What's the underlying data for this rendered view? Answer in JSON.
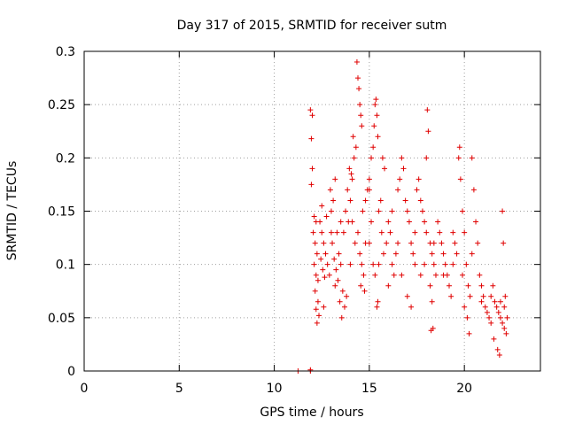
{
  "chart_data": {
    "type": "scatter",
    "title": "Day 317 of 2015, SRMTID for receiver sutm",
    "xlabel": "GPS time / hours",
    "ylabel": "SRMTID / TECUs",
    "xlim": [
      0,
      24
    ],
    "ylim": [
      0,
      0.3
    ],
    "xticks": [
      0,
      5,
      10,
      15,
      20
    ],
    "yticks": [
      0,
      0.05,
      0.1,
      0.15,
      0.2,
      0.25,
      0.3
    ],
    "xtick_labels": [
      "0",
      "5",
      "10",
      "15",
      "20"
    ],
    "ytick_labels": [
      "0",
      "0.05",
      "0.1",
      "0.15",
      "0.2",
      "0.25",
      "0.3"
    ],
    "grid": true,
    "marker": "+",
    "color": "#e00000",
    "series": [
      {
        "name": "SRMTID",
        "points": [
          [
            11.25,
            0.0
          ],
          [
            11.9,
            0.0
          ],
          [
            11.9,
            0.001
          ],
          [
            11.9,
            0.245
          ],
          [
            12.0,
            0.24
          ],
          [
            11.95,
            0.218
          ],
          [
            12.0,
            0.19
          ],
          [
            11.95,
            0.175
          ],
          [
            12.1,
            0.145
          ],
          [
            12.2,
            0.14
          ],
          [
            12.05,
            0.13
          ],
          [
            12.15,
            0.12
          ],
          [
            12.25,
            0.11
          ],
          [
            12.1,
            0.1
          ],
          [
            12.2,
            0.09
          ],
          [
            12.3,
            0.085
          ],
          [
            12.15,
            0.075
          ],
          [
            12.3,
            0.065
          ],
          [
            12.2,
            0.058
          ],
          [
            12.35,
            0.052
          ],
          [
            12.25,
            0.045
          ],
          [
            12.4,
            0.14
          ],
          [
            12.5,
            0.13
          ],
          [
            12.6,
            0.12
          ],
          [
            12.45,
            0.105
          ],
          [
            12.7,
            0.11
          ],
          [
            12.55,
            0.095
          ],
          [
            12.8,
            0.1
          ],
          [
            12.65,
            0.088
          ],
          [
            12.9,
            0.09
          ],
          [
            12.75,
            0.145
          ],
          [
            13.0,
            0.15
          ],
          [
            13.1,
            0.16
          ],
          [
            12.95,
            0.17
          ],
          [
            13.2,
            0.18
          ],
          [
            13.05,
            0.12
          ],
          [
            13.3,
            0.13
          ],
          [
            13.15,
            0.105
          ],
          [
            13.4,
            0.11
          ],
          [
            13.25,
            0.095
          ],
          [
            13.5,
            0.1
          ],
          [
            13.35,
            0.085
          ],
          [
            13.6,
            0.075
          ],
          [
            13.45,
            0.065
          ],
          [
            13.7,
            0.06
          ],
          [
            13.55,
            0.05
          ],
          [
            13.8,
            0.07
          ],
          [
            13.65,
            0.13
          ],
          [
            13.9,
            0.14
          ],
          [
            13.75,
            0.15
          ],
          [
            14.0,
            0.16
          ],
          [
            13.85,
            0.17
          ],
          [
            14.1,
            0.18
          ],
          [
            13.95,
            0.19
          ],
          [
            14.2,
            0.2
          ],
          [
            14.05,
            0.185
          ],
          [
            14.3,
            0.21
          ],
          [
            14.15,
            0.22
          ],
          [
            14.35,
            0.29
          ],
          [
            14.4,
            0.275
          ],
          [
            14.45,
            0.265
          ],
          [
            14.5,
            0.25
          ],
          [
            14.55,
            0.24
          ],
          [
            14.6,
            0.23
          ],
          [
            14.25,
            0.12
          ],
          [
            14.4,
            0.13
          ],
          [
            14.5,
            0.11
          ],
          [
            14.6,
            0.1
          ],
          [
            14.7,
            0.09
          ],
          [
            14.55,
            0.08
          ],
          [
            14.75,
            0.075
          ],
          [
            14.65,
            0.15
          ],
          [
            14.8,
            0.16
          ],
          [
            14.9,
            0.17
          ],
          [
            15.0,
            0.18
          ],
          [
            15.1,
            0.2
          ],
          [
            15.2,
            0.21
          ],
          [
            15.0,
            0.12
          ],
          [
            15.3,
            0.25
          ],
          [
            15.35,
            0.255
          ],
          [
            15.4,
            0.24
          ],
          [
            15.25,
            0.23
          ],
          [
            15.45,
            0.22
          ],
          [
            15.1,
            0.14
          ],
          [
            15.2,
            0.1
          ],
          [
            15.3,
            0.09
          ],
          [
            15.4,
            0.06
          ],
          [
            15.45,
            0.065
          ],
          [
            15.5,
            0.15
          ],
          [
            15.6,
            0.16
          ],
          [
            15.7,
            0.2
          ],
          [
            15.8,
            0.19
          ],
          [
            15.65,
            0.13
          ],
          [
            15.75,
            0.11
          ],
          [
            15.9,
            0.12
          ],
          [
            16.0,
            0.14
          ],
          [
            16.1,
            0.13
          ],
          [
            16.2,
            0.1
          ],
          [
            16.3,
            0.09
          ],
          [
            16.0,
            0.08
          ],
          [
            16.4,
            0.11
          ],
          [
            16.5,
            0.17
          ],
          [
            16.6,
            0.18
          ],
          [
            16.7,
            0.2
          ],
          [
            16.8,
            0.19
          ],
          [
            16.9,
            0.16
          ],
          [
            17.0,
            0.15
          ],
          [
            17.1,
            0.14
          ],
          [
            17.2,
            0.12
          ],
          [
            17.3,
            0.11
          ],
          [
            17.4,
            0.1
          ],
          [
            17.0,
            0.07
          ],
          [
            17.2,
            0.06
          ],
          [
            17.5,
            0.17
          ],
          [
            17.6,
            0.18
          ],
          [
            17.7,
            0.16
          ],
          [
            17.8,
            0.15
          ],
          [
            17.9,
            0.14
          ],
          [
            18.0,
            0.13
          ],
          [
            18.05,
            0.245
          ],
          [
            18.1,
            0.225
          ],
          [
            18.0,
            0.2
          ],
          [
            18.2,
            0.12
          ],
          [
            18.3,
            0.11
          ],
          [
            18.4,
            0.1
          ],
          [
            18.5,
            0.09
          ],
          [
            18.2,
            0.08
          ],
          [
            18.3,
            0.065
          ],
          [
            18.35,
            0.04
          ],
          [
            18.25,
            0.038
          ],
          [
            18.6,
            0.14
          ],
          [
            18.7,
            0.13
          ],
          [
            18.8,
            0.12
          ],
          [
            18.9,
            0.11
          ],
          [
            19.0,
            0.1
          ],
          [
            19.1,
            0.09
          ],
          [
            19.2,
            0.08
          ],
          [
            19.3,
            0.07
          ],
          [
            19.4,
            0.13
          ],
          [
            19.5,
            0.12
          ],
          [
            19.6,
            0.11
          ],
          [
            19.7,
            0.2
          ],
          [
            19.75,
            0.21
          ],
          [
            19.8,
            0.18
          ],
          [
            19.9,
            0.15
          ],
          [
            20.0,
            0.13
          ],
          [
            20.1,
            0.1
          ],
          [
            20.2,
            0.08
          ],
          [
            20.3,
            0.07
          ],
          [
            20.0,
            0.06
          ],
          [
            20.15,
            0.05
          ],
          [
            20.25,
            0.035
          ],
          [
            20.4,
            0.2
          ],
          [
            20.5,
            0.17
          ],
          [
            20.6,
            0.14
          ],
          [
            20.7,
            0.12
          ],
          [
            20.8,
            0.09
          ],
          [
            20.9,
            0.08
          ],
          [
            21.0,
            0.07
          ],
          [
            21.1,
            0.06
          ],
          [
            21.2,
            0.055
          ],
          [
            21.3,
            0.05
          ],
          [
            21.4,
            0.045
          ],
          [
            21.5,
            0.08
          ],
          [
            21.6,
            0.065
          ],
          [
            21.7,
            0.06
          ],
          [
            21.8,
            0.055
          ],
          [
            21.9,
            0.05
          ],
          [
            22.0,
            0.045
          ],
          [
            22.1,
            0.04
          ],
          [
            22.2,
            0.035
          ],
          [
            21.55,
            0.03
          ],
          [
            21.75,
            0.02
          ],
          [
            21.85,
            0.015
          ],
          [
            22.0,
            0.15
          ],
          [
            22.05,
            0.12
          ],
          [
            22.15,
            0.07
          ],
          [
            22.25,
            0.05
          ],
          [
            12.5,
            0.155
          ],
          [
            13.0,
            0.13
          ],
          [
            13.5,
            0.14
          ],
          [
            14.0,
            0.1
          ],
          [
            14.8,
            0.12
          ],
          [
            15.5,
            0.1
          ],
          [
            16.2,
            0.15
          ],
          [
            16.7,
            0.09
          ],
          [
            17.4,
            0.13
          ],
          [
            17.9,
            0.1
          ],
          [
            18.4,
            0.12
          ],
          [
            18.9,
            0.09
          ],
          [
            19.4,
            0.1
          ],
          [
            19.9,
            0.09
          ],
          [
            20.4,
            0.11
          ],
          [
            20.9,
            0.065
          ],
          [
            21.4,
            0.07
          ],
          [
            21.9,
            0.065
          ],
          [
            22.1,
            0.06
          ],
          [
            12.6,
            0.06
          ],
          [
            13.2,
            0.08
          ],
          [
            14.1,
            0.14
          ],
          [
            15.0,
            0.17
          ],
          [
            16.5,
            0.12
          ],
          [
            17.7,
            0.09
          ]
        ]
      }
    ]
  }
}
